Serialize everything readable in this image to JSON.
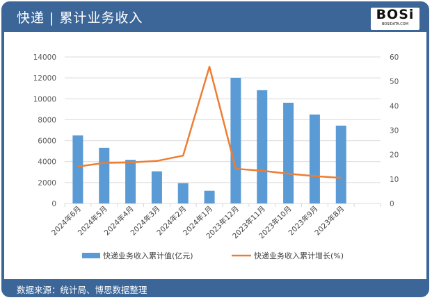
{
  "header": {
    "title": "快递 | 累计业务收入",
    "logo_text": "BOSi",
    "logo_sub": "BOSIDATA.COM"
  },
  "footer": {
    "source": "数据来源：统计局、博思数据整理"
  },
  "colors": {
    "bar": "#5b9bd5",
    "line": "#ed7d31",
    "frame": "#3b6697"
  },
  "chart_data": {
    "type": "bar+line",
    "categories": [
      "2024年6月",
      "2024年5月",
      "2024年4月",
      "2024年3月",
      "2024年2月",
      "2024年1月",
      "2023年12月",
      "2023年11月",
      "2023年10月",
      "2023年9月",
      "2023年8月"
    ],
    "series": [
      {
        "name": "快递业务收入累计值(亿元)",
        "type": "bar",
        "axis": "left",
        "values": [
          6500,
          5320,
          4170,
          3070,
          1940,
          1215,
          12010,
          10820,
          9625,
          8500,
          7440
        ]
      },
      {
        "name": "快递业务收入累计增长(%)",
        "type": "line",
        "axis": "right",
        "values": [
          15.1,
          16.6,
          16.8,
          17.4,
          19.6,
          56.0,
          14.2,
          13.4,
          12.2,
          11.2,
          10.5
        ]
      }
    ],
    "y_left": {
      "lim": [
        0,
        14000
      ],
      "ticks": [
        "0",
        "2000",
        "4000",
        "6000",
        "8000",
        "10000",
        "12000",
        "14000"
      ]
    },
    "y_right": {
      "lim": [
        0,
        60
      ],
      "ticks": [
        "0",
        "10",
        "20",
        "30",
        "40",
        "50",
        "60"
      ]
    },
    "grid": true,
    "legend": "bottom"
  }
}
